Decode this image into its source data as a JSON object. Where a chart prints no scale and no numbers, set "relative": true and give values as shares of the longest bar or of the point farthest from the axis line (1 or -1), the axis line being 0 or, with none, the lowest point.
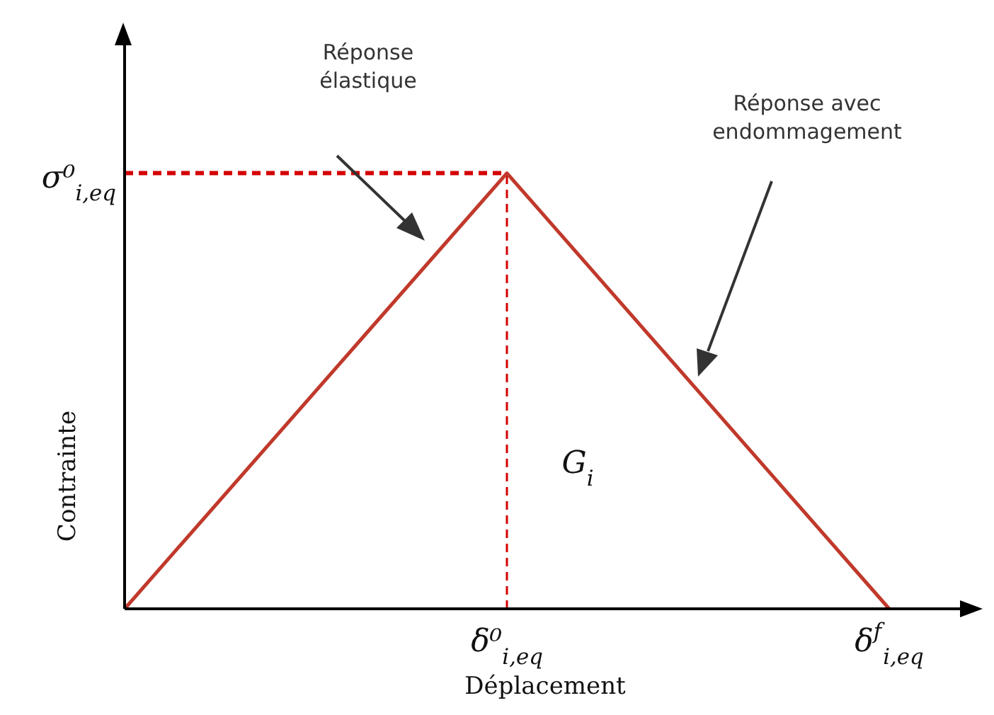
{
  "chart_data": {
    "type": "line",
    "relative": true,
    "xlabel": "Déplacement",
    "ylabel": "Contrainte",
    "categories": [
      null,
      "δ⁰$_{i,eq}$",
      "δ$^{f}$$_{i,eq}$"
    ],
    "series": [
      {
        "color": "#c0392b",
        "values": [
          0,
          1,
          0
        ]
      }
    ],
    "ref_lines": [
      {
        "axis": "y",
        "value": 1,
        "label": "σ⁰$_{i,eq}$",
        "color": "#d40000",
        "line_style": "dashed"
      },
      {
        "axis": "x",
        "value": "δ⁰$_{i,eq}$",
        "color": "#d40000",
        "line_style": "dashed"
      }
    ],
    "annotations": [
      "Réponse élastique",
      "Réponse avec endommagement",
      "G$_{i}$"
    ],
    "marker": "none",
    "line_style": "solid",
    "grid": false,
    "legend": false
  }
}
